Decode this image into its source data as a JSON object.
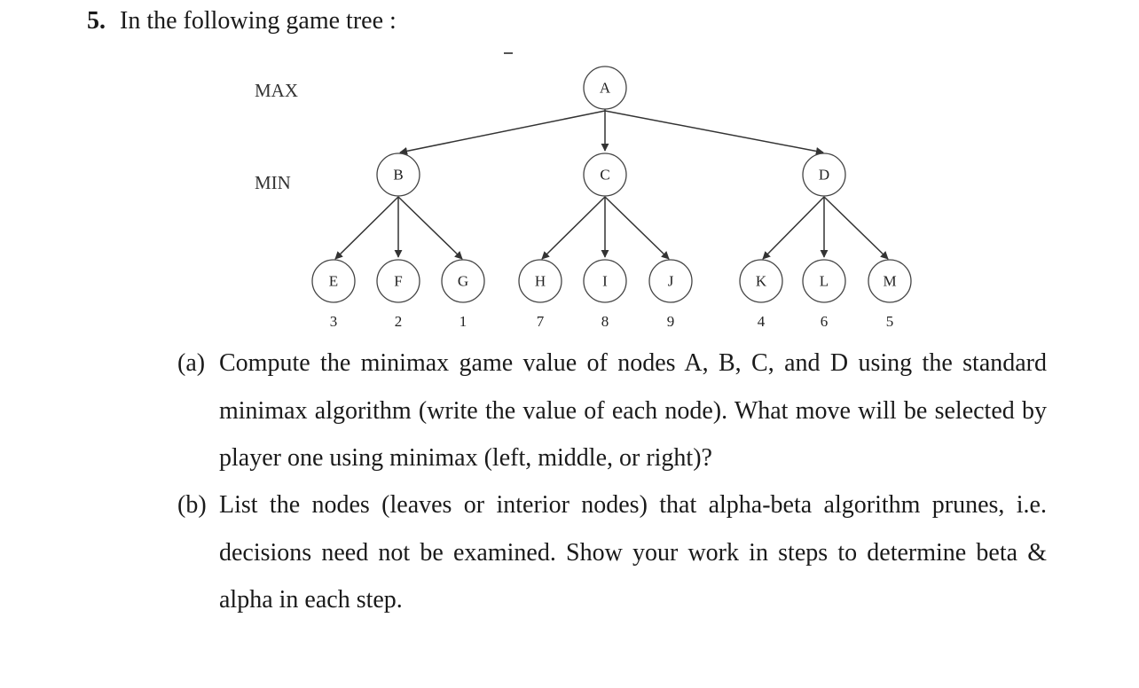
{
  "question": {
    "number": "5.",
    "title": "In the following game tree :"
  },
  "tree": {
    "levels": [
      "MAX",
      "MIN"
    ],
    "root": {
      "label": "A"
    },
    "min_nodes": [
      {
        "label": "B"
      },
      {
        "label": "C"
      },
      {
        "label": "D"
      }
    ],
    "leaves": [
      {
        "label": "E",
        "value": "3"
      },
      {
        "label": "F",
        "value": "2"
      },
      {
        "label": "G",
        "value": "1"
      },
      {
        "label": "H",
        "value": "7"
      },
      {
        "label": "I",
        "value": "8"
      },
      {
        "label": "J",
        "value": "9"
      },
      {
        "label": "K",
        "value": "4"
      },
      {
        "label": "L",
        "value": "6"
      },
      {
        "label": "M",
        "value": "5"
      }
    ]
  },
  "parts": [
    {
      "marker": "(a)",
      "text": "Compute the minimax game value of nodes A, B, C, and D using the standard minimax algorithm (write the value of each node). What move will be selected by player one using minimax (left, middle, or right)?"
    },
    {
      "marker": "(b)",
      "text": "List the nodes (leaves or interior nodes) that alpha-beta algorithm prunes, i.e. decisions need not be examined. Show your work in steps to determine beta & alpha in each step."
    }
  ]
}
